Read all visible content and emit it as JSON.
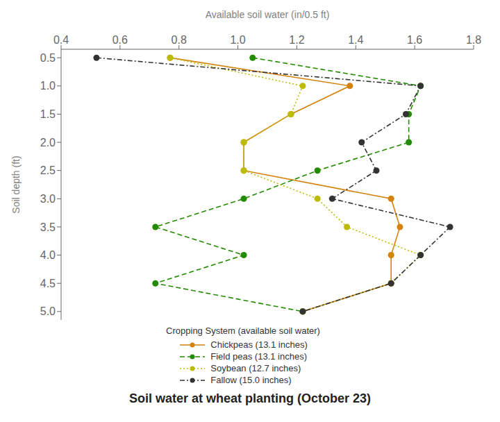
{
  "chart_data": {
    "type": "line",
    "title": "Soil water at wheat planting (October 23)",
    "x_label": "Available soil water (in/0.5 ft)",
    "y_label": "Soil depth (ft)",
    "legend_title": "Cropping System (available soil water)",
    "y": [
      0.5,
      1.0,
      1.5,
      2.0,
      2.5,
      3.0,
      3.5,
      4.0,
      4.5,
      5.0
    ],
    "series": [
      {
        "name": "Chickpeas (13.1 inches)",
        "color": "#D4820A",
        "line_style": "solid",
        "marker": "circle",
        "values": [
          0.77,
          1.38,
          1.18,
          1.02,
          1.02,
          1.52,
          1.55,
          1.52,
          1.52,
          1.22
        ]
      },
      {
        "name": "Field peas (13.1 inches)",
        "color": "#228B00",
        "line_style": "dashed",
        "marker": "circle",
        "values": [
          1.05,
          1.62,
          1.58,
          1.58,
          1.27,
          1.02,
          0.72,
          1.02,
          0.72,
          1.22
        ]
      },
      {
        "name": "Soybean (12.7 inches)",
        "color": "#BBBB00",
        "line_style": "dotted",
        "marker": "circle",
        "values": [
          0.77,
          1.22,
          1.18,
          1.02,
          1.02,
          1.27,
          1.37,
          1.62,
          1.52,
          1.22
        ]
      },
      {
        "name": "Fallow (15.0 inches)",
        "color": "#333333",
        "line_style": "dashdot",
        "marker": "circle",
        "values": [
          0.52,
          1.62,
          1.57,
          1.42,
          1.47,
          1.32,
          1.72,
          1.62,
          1.52,
          1.22
        ]
      }
    ],
    "xlim": [
      0.4,
      1.8
    ],
    "ylim": [
      5.15,
      0.35
    ],
    "xticks": [
      0.4,
      0.6,
      0.8,
      {
        "value": 1.0,
        "label": "1.0"
      },
      1.2,
      1.4,
      1.6,
      1.8
    ],
    "yticks": [
      0.5,
      {
        "value": 1.0,
        "label": "1.0"
      },
      1.5,
      {
        "value": 2.0,
        "label": "2.0"
      },
      2.5,
      {
        "value": 3.0,
        "label": "3.0"
      },
      3.5,
      {
        "value": 4.0,
        "label": "4.0"
      },
      4.5,
      {
        "value": 5.0,
        "label": "5.0"
      }
    ],
    "grid": false,
    "legend": "bottom"
  }
}
